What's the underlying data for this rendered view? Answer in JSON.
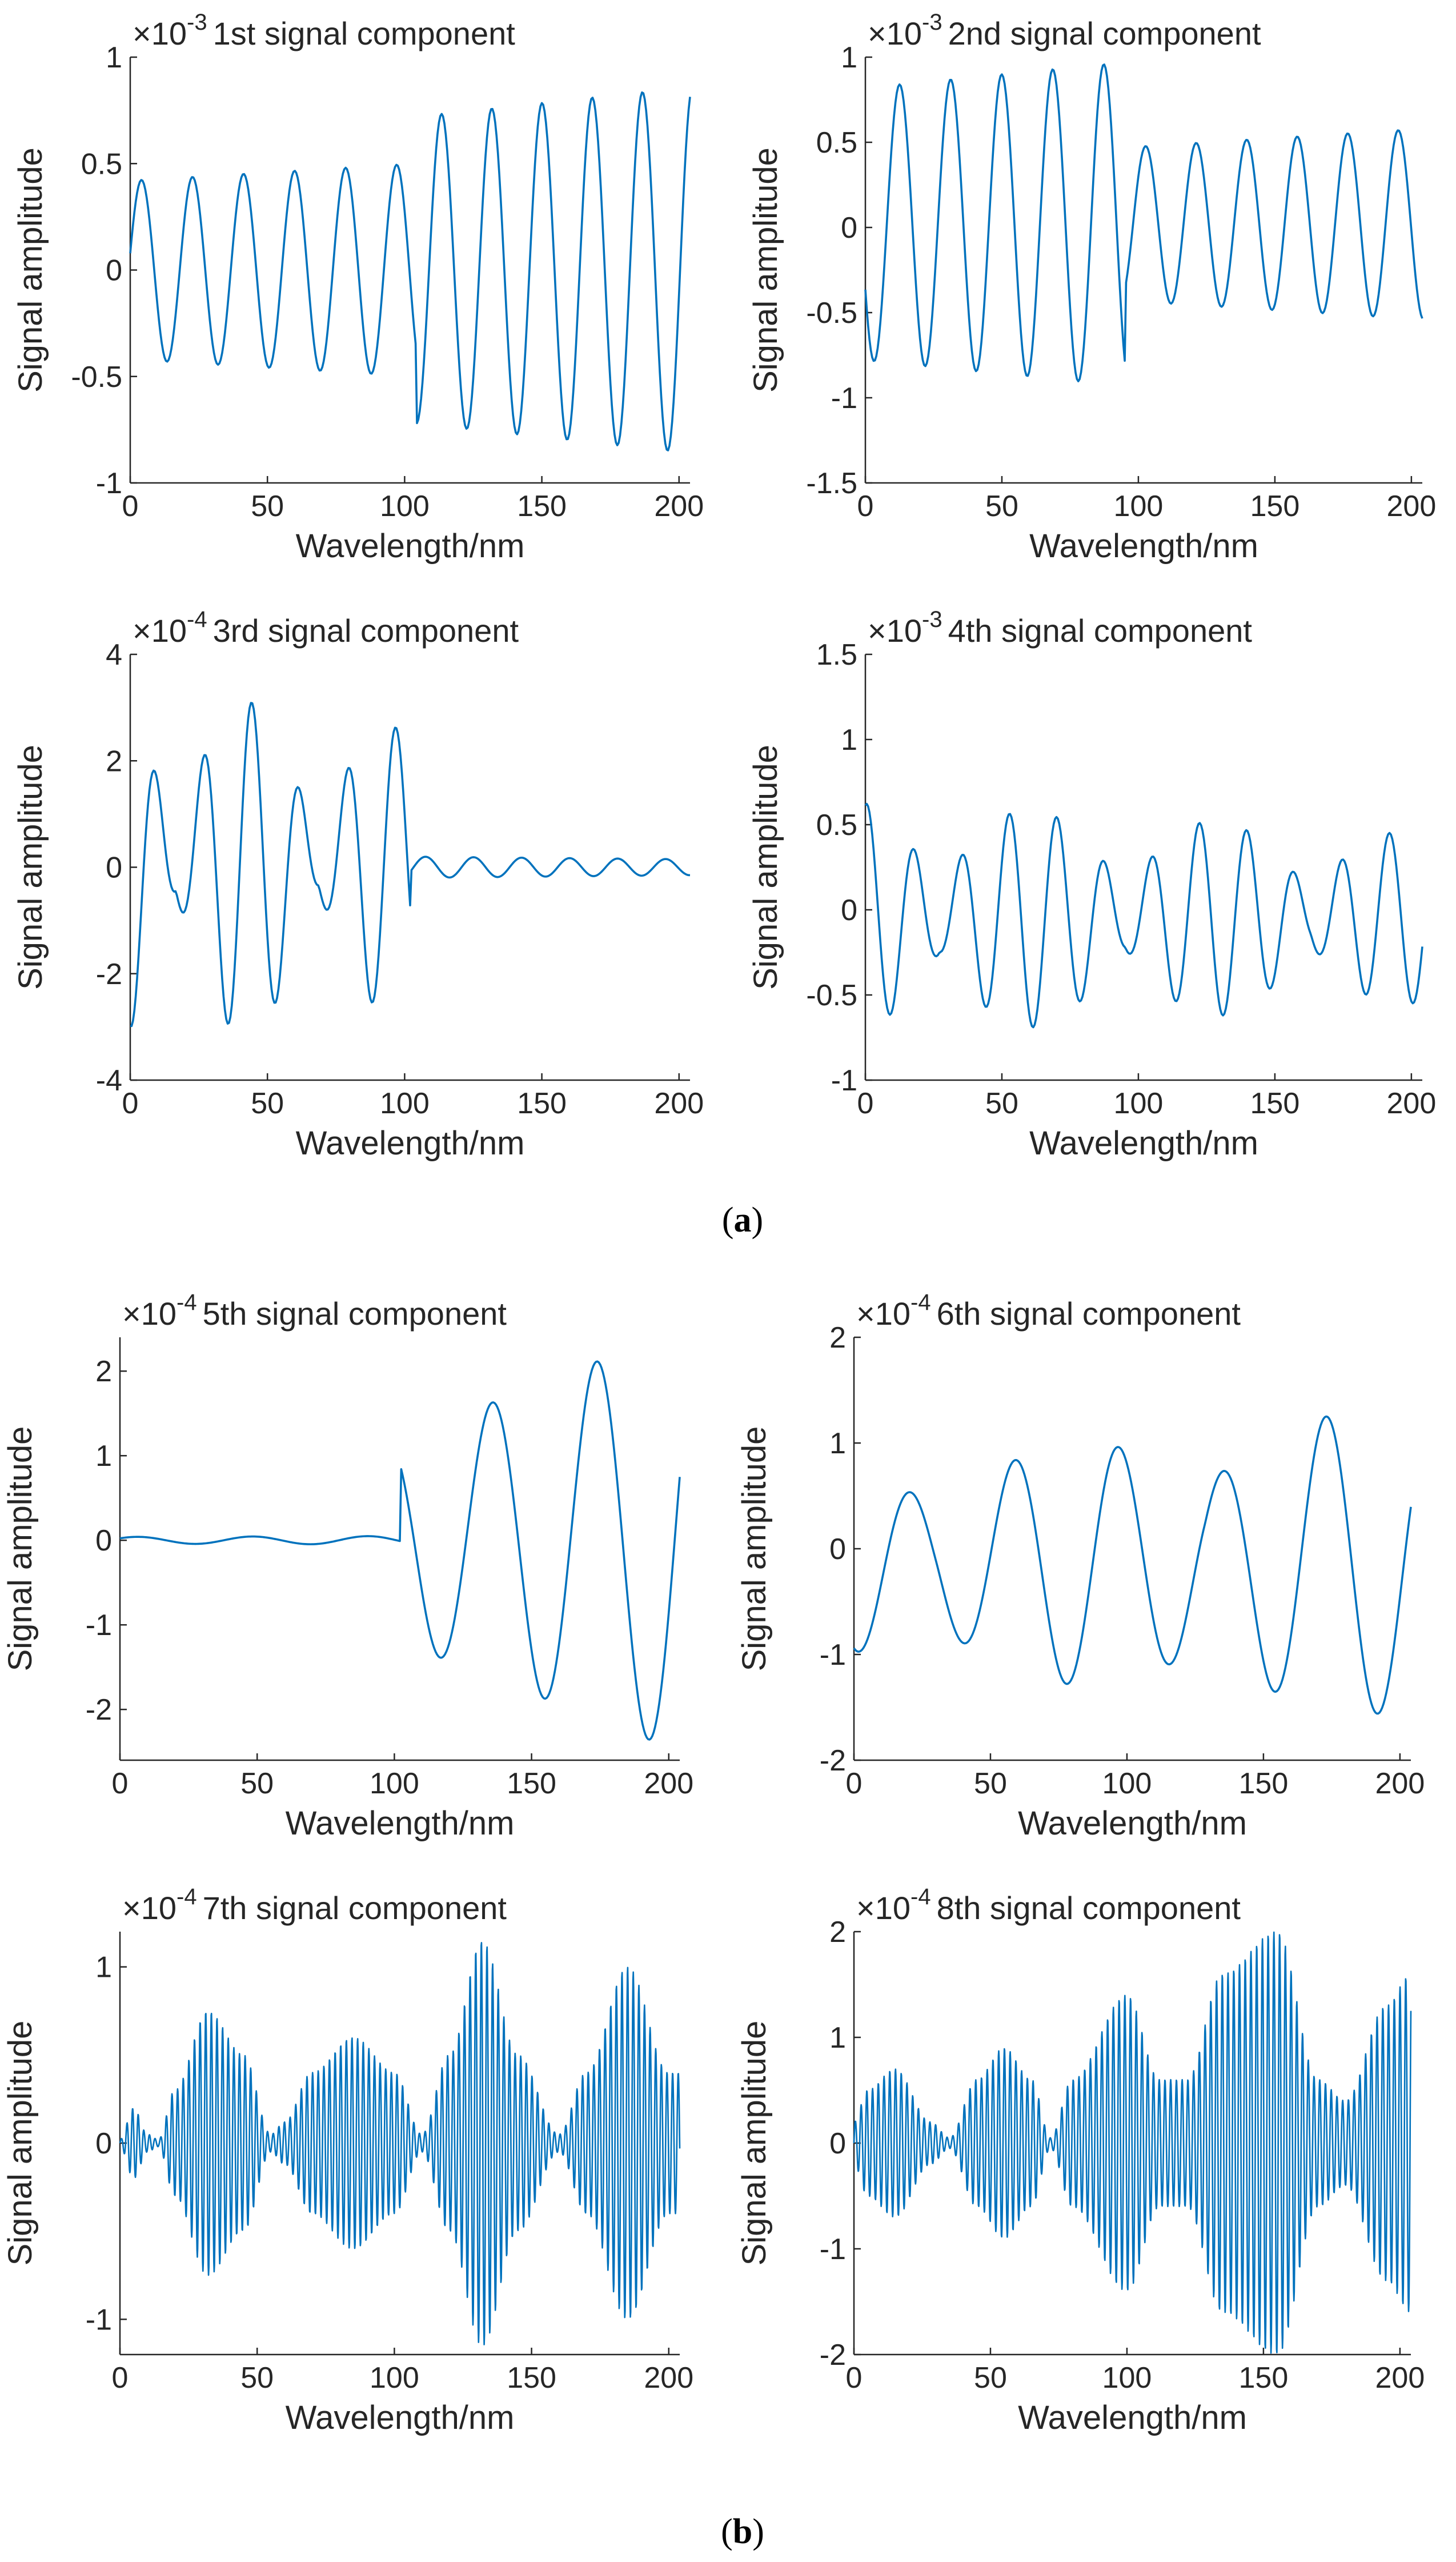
{
  "figure": {
    "panel_labels": {
      "a": {
        "open": "(",
        "letter": "a",
        "close": ")"
      },
      "b": {
        "open": "(",
        "letter": "b",
        "close": ")"
      }
    },
    "series_color": "#0072BD"
  },
  "chart_data": [
    {
      "type": "line",
      "id": "c1",
      "panel": "a",
      "title": "1st signal component",
      "exponent_label": "×10",
      "exponent": "-3",
      "xlabel": "Wavelength/nm",
      "ylabel": "Signal amplitude",
      "xlim": [
        0,
        204
      ],
      "ylim": [
        -1,
        1
      ],
      "xticks": [
        0,
        50,
        100,
        150,
        200
      ],
      "xtick_labels": [
        "0",
        "50",
        "100",
        "150",
        "200"
      ],
      "yticks": [
        -1,
        -0.5,
        0,
        0.5,
        1
      ],
      "ytick_labels": [
        "-1",
        "-0.5",
        "0",
        "0.5",
        "1"
      ],
      "series": [
        {
          "name": "1st signal component",
          "segments": [
            {
              "x_start": 0,
              "x_end": 104,
              "period": 18.6,
              "phase": 0.03,
              "amp_start": 0.42,
              "amp_end": 0.5,
              "offset": 0
            },
            {
              "x_start": 104,
              "x_end": 204,
              "period": 18.3,
              "phase": 0.05,
              "amp_start": 0.72,
              "amp_end": 0.86,
              "offset": 0
            }
          ]
        }
      ]
    },
    {
      "type": "line",
      "id": "c2",
      "panel": "a",
      "title": "2nd signal component",
      "exponent_label": "×10",
      "exponent": "-3",
      "xlabel": "Wavelength/nm",
      "ylabel": "Signal amplitude",
      "xlim": [
        0,
        204
      ],
      "ylim": [
        -1.5,
        1
      ],
      "xticks": [
        0,
        50,
        100,
        150,
        200
      ],
      "xtick_labels": [
        "0",
        "50",
        "100",
        "150",
        "200"
      ],
      "yticks": [
        -1.5,
        -1,
        -0.5,
        0,
        0.5,
        1
      ],
      "ytick_labels": [
        "-1.5",
        "-1",
        "-0.5",
        "0",
        "0.5",
        "1"
      ],
      "series": [
        {
          "name": "2nd signal component",
          "segments": [
            {
              "x_start": 0,
              "x_end": 95,
              "period": 18.7,
              "phase": -0.42,
              "amp_start": 0.8,
              "amp_end": 0.95,
              "offset": 0.02
            },
            {
              "x_start": 95,
              "x_end": 204,
              "period": 18.5,
              "phase": -0.3,
              "amp_start": 0.45,
              "amp_end": 0.56,
              "offset": 0.02
            }
          ]
        }
      ]
    },
    {
      "type": "line",
      "id": "c3",
      "panel": "a",
      "title": "3rd signal component",
      "exponent_label": "×10",
      "exponent": "-4",
      "xlabel": "Wavelength/nm",
      "ylabel": "Signal amplitude",
      "xlim": [
        0,
        204
      ],
      "ylim": [
        -4,
        4
      ],
      "xticks": [
        0,
        50,
        100,
        150,
        200
      ],
      "xtick_labels": [
        "0",
        "50",
        "100",
        "150",
        "200"
      ],
      "yticks": [
        -4,
        -2,
        0,
        2,
        4
      ],
      "ytick_labels": [
        "-4",
        "-2",
        "0",
        "2",
        "4"
      ],
      "series": [
        {
          "name": "3rd signal component",
          "segments": [
            {
              "x_start": 0,
              "x_end": 102,
              "period": 17.5,
              "phase": -0.28,
              "amp_start": 3.5,
              "amp_end": 2.6,
              "offset": 0,
              "beat_period": 52,
              "beat_phase": 0.18,
              "beat_depth": 0.85
            },
            {
              "x_start": 102,
              "x_end": 204,
              "period": 17.5,
              "phase": 0.1,
              "amp_start": 0.2,
              "amp_end": 0.15,
              "offset": 0
            }
          ]
        }
      ]
    },
    {
      "type": "line",
      "id": "c4",
      "panel": "a",
      "title": "4th signal component",
      "exponent_label": "×10",
      "exponent": "-3",
      "xlabel": "Wavelength/nm",
      "ylabel": "Signal amplitude",
      "xlim": [
        0,
        204
      ],
      "ylim": [
        -1,
        1.5
      ],
      "xticks": [
        0,
        50,
        100,
        150,
        200
      ],
      "xtick_labels": [
        "0",
        "50",
        "100",
        "150",
        "200"
      ],
      "yticks": [
        -1,
        -0.5,
        0,
        0.5,
        1,
        1.5
      ],
      "ytick_labels": [
        "-1",
        "-0.5",
        "0",
        "0.5",
        "1",
        "1.5"
      ],
      "series": [
        {
          "name": "4th signal component",
          "segments": [
            {
              "x_start": 0,
              "x_end": 204,
              "period": 17.4,
              "phase": 0.22,
              "amp_start": 0.7,
              "amp_end": 0.5,
              "offset": -0.05,
              "beat_period": 68,
              "beat_phase": 0.1,
              "beat_depth": 0.7
            }
          ]
        }
      ]
    },
    {
      "type": "line",
      "id": "c5",
      "panel": "b",
      "title": "5th signal component",
      "exponent_label": "×10",
      "exponent": "-4",
      "xlabel": "Wavelength/nm",
      "ylabel": "Signal amplitude",
      "xlim": [
        0,
        204
      ],
      "ylim": [
        -2.6,
        2.4
      ],
      "xticks": [
        0,
        50,
        100,
        150,
        200
      ],
      "xtick_labels": [
        "0",
        "50",
        "100",
        "150",
        "200"
      ],
      "yticks": [
        -2,
        -1,
        0,
        1,
        2
      ],
      "ytick_labels": [
        "-2",
        "-1",
        "0",
        "1",
        "2"
      ],
      "series": [
        {
          "name": "5th signal component",
          "segments": [
            {
              "x_start": 0,
              "x_end": 102,
              "period": 42,
              "phase": 0.1,
              "amp_start": 0.04,
              "amp_end": 0.05,
              "offset": 0
            },
            {
              "x_start": 102,
              "x_end": 204,
              "period": 38,
              "phase": 0.68,
              "amp_start": 1.2,
              "amp_end": 2.5,
              "offset": 0
            }
          ]
        }
      ]
    },
    {
      "type": "line",
      "id": "c6",
      "panel": "b",
      "title": "6th signal component",
      "exponent_label": "×10",
      "exponent": "-4",
      "xlabel": "Wavelength/nm",
      "ylabel": "Signal amplitude",
      "xlim": [
        0,
        204
      ],
      "ylim": [
        -2,
        2
      ],
      "xticks": [
        0,
        50,
        100,
        150,
        200
      ],
      "xtick_labels": [
        "0",
        "50",
        "100",
        "150",
        "200"
      ],
      "yticks": [
        -2,
        -1,
        0,
        1,
        2
      ],
      "ytick_labels": [
        "-2",
        "-1",
        "0",
        "1",
        "2"
      ],
      "series": [
        {
          "name": "6th signal component",
          "segments": [
            {
              "x_start": 0,
              "x_end": 204,
              "period": 38,
              "phase": -0.3,
              "amp_start": 0.9,
              "amp_end": 1.5,
              "offset": -0.15,
              "beat_period": 99,
              "beat_phase": 0.2,
              "beat_depth": 0.4
            }
          ]
        }
      ]
    },
    {
      "type": "line",
      "id": "c7",
      "panel": "b",
      "title": "7th signal component",
      "exponent_label": "×10",
      "exponent": "-4",
      "xlabel": "Wavelength/nm",
      "ylabel": "Signal amplitude",
      "xlim": [
        0,
        204
      ],
      "ylim": [
        -1.2,
        1.2
      ],
      "xticks": [
        0,
        50,
        100,
        150,
        200
      ],
      "xtick_labels": [
        "0",
        "50",
        "100",
        "150",
        "200"
      ],
      "yticks": [
        -1,
        0,
        1
      ],
      "ytick_labels": [
        "-1",
        "0",
        "1"
      ],
      "series": [
        {
          "name": "7th signal component",
          "carrier_period": 2.05,
          "envelope": {
            "x": [
              0,
              5,
              10,
              14,
              20,
              32,
              45,
              55,
              60,
              70,
              85,
              100,
              110,
              120,
              132,
              145,
              160,
              170,
              185,
              200,
              204
            ],
            "amp": [
              0.02,
              0.2,
              0.05,
              0.02,
              0.3,
              0.75,
              0.5,
              0.05,
              0.12,
              0.4,
              0.6,
              0.4,
              0.05,
              0.5,
              1.15,
              0.5,
              0.05,
              0.4,
              1.0,
              0.4,
              0.4
            ]
          }
        }
      ]
    },
    {
      "type": "line",
      "id": "c8",
      "panel": "b",
      "title": "8th signal component",
      "exponent_label": "×10",
      "exponent": "-4",
      "xlabel": "Wavelength/nm",
      "ylabel": "Signal amplitude",
      "xlim": [
        0,
        204
      ],
      "ylim": [
        -2,
        2
      ],
      "xticks": [
        0,
        50,
        100,
        150,
        200
      ],
      "xtick_labels": [
        "0",
        "50",
        "100",
        "150",
        "200"
      ],
      "yticks": [
        -2,
        -1,
        0,
        1,
        2
      ],
      "ytick_labels": [
        "-2",
        "-1",
        "0",
        "1",
        "2"
      ],
      "series": [
        {
          "name": "8th signal component",
          "carrier_period": 2.1,
          "envelope": {
            "x": [
              0,
              5,
              15,
              28,
              35,
              45,
              55,
              65,
              72,
              80,
              100,
              112,
              122,
              135,
              155,
              170,
              180,
              195,
              204
            ],
            "amp": [
              0.2,
              0.5,
              0.7,
              0.2,
              0.05,
              0.6,
              0.9,
              0.6,
              0.05,
              0.6,
              1.4,
              0.6,
              0.6,
              1.6,
              2.0,
              0.6,
              0.4,
              1.3,
              1.6
            ]
          }
        }
      ]
    }
  ]
}
